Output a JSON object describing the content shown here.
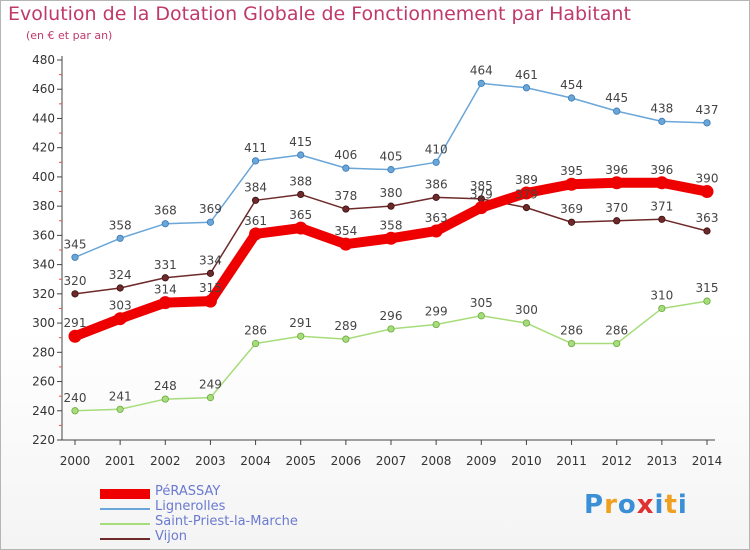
{
  "title": "Evolution de la Dotation Globale de Fonctionnement par Habitant",
  "subtitle": "(en € et par an)",
  "logo": {
    "chars": [
      "P",
      "r",
      "o",
      "x",
      "i",
      "t",
      "i"
    ],
    "colors": [
      "#3a8fd6",
      "#f0a020",
      "#3a8fd6",
      "#e03030",
      "#3a8fd6",
      "#f0a020",
      "#3a8fd6"
    ]
  },
  "chart_data": {
    "type": "line",
    "title": "Evolution de la Dotation Globale de Fonctionnement par Habitant",
    "x": [
      "2000",
      "2001",
      "2002",
      "2003",
      "2004",
      "2005",
      "2006",
      "2007",
      "2008",
      "2009",
      "2010",
      "2011",
      "2012",
      "2013",
      "2014"
    ],
    "ylim": [
      220,
      480
    ],
    "yticks": [
      220,
      240,
      260,
      280,
      300,
      320,
      340,
      360,
      380,
      400,
      420,
      440,
      460,
      480
    ],
    "grid": false,
    "legend": "bottom-left",
    "series": [
      {
        "name": "PéRASSAY",
        "color": "#ee0000",
        "values": [
          291,
          303,
          314,
          315,
          361,
          365,
          354,
          358,
          363,
          379,
          389,
          395,
          396,
          396,
          390
        ]
      },
      {
        "name": "Lignerolles",
        "color": "#6aa6d8",
        "values": [
          345,
          358,
          368,
          369,
          411,
          415,
          406,
          405,
          410,
          464,
          461,
          454,
          445,
          438,
          437
        ]
      },
      {
        "name": "Saint-Priest-la-Marche",
        "color": "#a6dc7a",
        "values": [
          240,
          241,
          248,
          249,
          286,
          291,
          289,
          296,
          299,
          305,
          300,
          286,
          286,
          310,
          315
        ]
      },
      {
        "name": "Vijon",
        "color": "#6e2a2a",
        "values": [
          320,
          324,
          331,
          334,
          384,
          388,
          378,
          380,
          386,
          385,
          379,
          369,
          370,
          371,
          363
        ]
      }
    ]
  }
}
